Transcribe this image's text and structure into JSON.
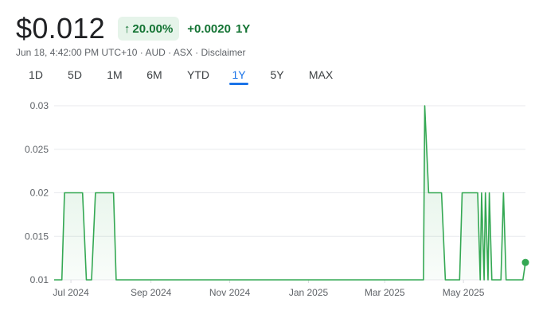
{
  "quote": {
    "price": "$0.012",
    "change_arrow": "↑",
    "change_percent": "20.00%",
    "change_amount": "+0.0020",
    "change_period": "1Y"
  },
  "meta": {
    "timestamp": "Jun 18, 4:42:00 PM UTC+10",
    "currency": "AUD",
    "exchange": "ASX",
    "disclaimer": "Disclaimer",
    "sep": " · "
  },
  "ranges": [
    "1D",
    "5D",
    "1M",
    "6M",
    "YTD",
    "1Y",
    "5Y",
    "MAX"
  ],
  "active_range": "1Y",
  "colors": {
    "line": "#34a853",
    "positive_text": "#137333",
    "badge_bg": "#e6f4ea",
    "grid": "#e8eaed",
    "tab_active": "#1a73e8"
  },
  "chart_data": {
    "type": "area",
    "x_axis": "date",
    "x_ticks": [
      "Jul 2024",
      "Sep 2024",
      "Nov 2024",
      "Jan 2025",
      "Mar 2025",
      "May 2025"
    ],
    "y_ticks": [
      "0.03",
      "0.025",
      "0.02",
      "0.015",
      "0.01"
    ],
    "ylim": [
      0.01,
      0.03
    ],
    "grid": true,
    "series": [
      {
        "points": [
          [
            "2024-06-18",
            0.01
          ],
          [
            "2024-06-24",
            0.01
          ],
          [
            "2024-06-26",
            0.02
          ],
          [
            "2024-07-10",
            0.02
          ],
          [
            "2024-07-13",
            0.01
          ],
          [
            "2024-07-17",
            0.01
          ],
          [
            "2024-07-20",
            0.02
          ],
          [
            "2024-08-03",
            0.02
          ],
          [
            "2024-08-05",
            0.01
          ],
          [
            "2025-03-31",
            0.01
          ],
          [
            "2025-04-01",
            0.03
          ],
          [
            "2025-04-04",
            0.02
          ],
          [
            "2025-04-14",
            0.02
          ],
          [
            "2025-04-17",
            0.01
          ],
          [
            "2025-04-28",
            0.01
          ],
          [
            "2025-04-30",
            0.02
          ],
          [
            "2025-05-12",
            0.02
          ],
          [
            "2025-05-14",
            0.01
          ],
          [
            "2025-05-15",
            0.02
          ],
          [
            "2025-05-17",
            0.01
          ],
          [
            "2025-05-18",
            0.02
          ],
          [
            "2025-05-20",
            0.01
          ],
          [
            "2025-05-21",
            0.02
          ],
          [
            "2025-05-23",
            0.01
          ],
          [
            "2025-05-30",
            0.01
          ],
          [
            "2025-06-01",
            0.02
          ],
          [
            "2025-06-03",
            0.01
          ],
          [
            "2025-06-16",
            0.01
          ],
          [
            "2025-06-18",
            0.012
          ]
        ]
      }
    ]
  }
}
